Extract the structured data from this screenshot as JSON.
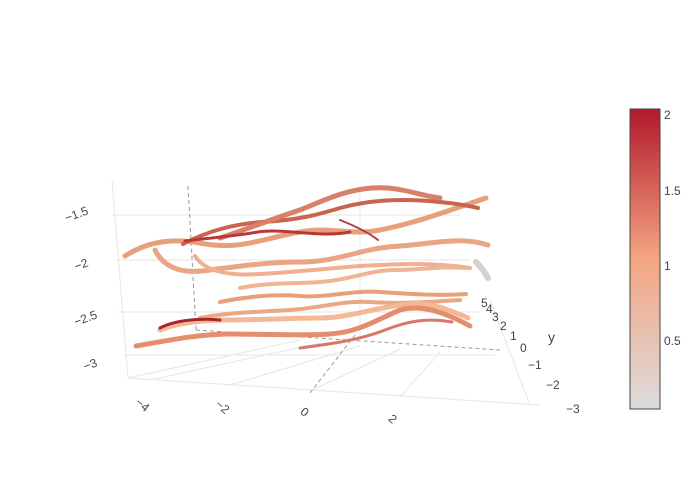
{
  "chart_data": {
    "type": "streamtube",
    "title": "",
    "axes": {
      "x": {
        "label": "",
        "ticks": [
          "−4",
          "−2",
          "0",
          "2"
        ]
      },
      "y": {
        "label": "y",
        "ticks": [
          "−3",
          "−2",
          "−1",
          "0",
          "1",
          "2",
          "3",
          "4",
          "5"
        ]
      },
      "z": {
        "label": "",
        "ticks": [
          "−3",
          "−2.5",
          "−2",
          "−1.5"
        ]
      }
    },
    "colorscale": {
      "name": "RdBu",
      "range": [
        0,
        2
      ],
      "ticks": [
        "0.5",
        "1",
        "1.5",
        "2"
      ],
      "stops": [
        "#dcdcdc",
        "#f4a582",
        "#b2182b"
      ]
    },
    "grid": true
  }
}
